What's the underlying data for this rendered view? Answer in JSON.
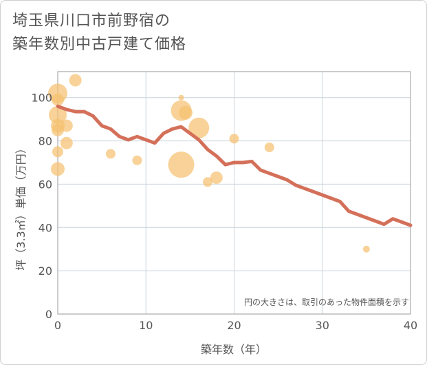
{
  "chart_data": {
    "type": "scatter",
    "title_lines": [
      "埼玉県川口市前野宿の",
      "築年数別中古戸建て価格"
    ],
    "xlabel": "築年数（年）",
    "ylabel": "坪（3.3㎡）単価（万円）",
    "xlim": [
      0,
      40
    ],
    "ylim": [
      0,
      112
    ],
    "xticks": [
      0,
      10,
      20,
      30,
      40
    ],
    "yticks": [
      0,
      20,
      40,
      60,
      80,
      100
    ],
    "grid": true,
    "note": "円の大きさは、取引のあった物件面積を示す",
    "bubble_color": "#f5c070",
    "line_color": "#d4705a",
    "scatter": [
      {
        "x": 0,
        "y": 102,
        "r": 14
      },
      {
        "x": 0,
        "y": 99,
        "r": 9
      },
      {
        "x": 0,
        "y": 92,
        "r": 13
      },
      {
        "x": 0,
        "y": 87,
        "r": 10
      },
      {
        "x": 0,
        "y": 85,
        "r": 9
      },
      {
        "x": 0,
        "y": 75,
        "r": 8
      },
      {
        "x": 0,
        "y": 67,
        "r": 10
      },
      {
        "x": 1,
        "y": 87,
        "r": 9
      },
      {
        "x": 1,
        "y": 79,
        "r": 9
      },
      {
        "x": 2,
        "y": 108,
        "r": 9
      },
      {
        "x": 6,
        "y": 74,
        "r": 7
      },
      {
        "x": 9,
        "y": 71,
        "r": 7
      },
      {
        "x": 14,
        "y": 100,
        "r": 4
      },
      {
        "x": 14,
        "y": 94,
        "r": 15
      },
      {
        "x": 14.5,
        "y": 93,
        "r": 10
      },
      {
        "x": 14,
        "y": 69,
        "r": 19
      },
      {
        "x": 16,
        "y": 86,
        "r": 15
      },
      {
        "x": 17,
        "y": 61,
        "r": 7
      },
      {
        "x": 18,
        "y": 63,
        "r": 9
      },
      {
        "x": 20,
        "y": 81,
        "r": 7
      },
      {
        "x": 24,
        "y": 77,
        "r": 7
      },
      {
        "x": 35,
        "y": 30,
        "r": 5
      }
    ],
    "trend": [
      {
        "x": 0,
        "y": 96
      },
      {
        "x": 1,
        "y": 94.5
      },
      {
        "x": 2,
        "y": 93.5
      },
      {
        "x": 3,
        "y": 93.5
      },
      {
        "x": 4,
        "y": 91.5
      },
      {
        "x": 5,
        "y": 87
      },
      {
        "x": 6,
        "y": 85.5
      },
      {
        "x": 7,
        "y": 82
      },
      {
        "x": 8,
        "y": 80.5
      },
      {
        "x": 9,
        "y": 82
      },
      {
        "x": 10,
        "y": 80.5
      },
      {
        "x": 11,
        "y": 79
      },
      {
        "x": 12,
        "y": 83.5
      },
      {
        "x": 13,
        "y": 85.5
      },
      {
        "x": 14,
        "y": 86.5
      },
      {
        "x": 15,
        "y": 83.5
      },
      {
        "x": 16,
        "y": 80.5
      },
      {
        "x": 17,
        "y": 76
      },
      {
        "x": 18,
        "y": 73
      },
      {
        "x": 19,
        "y": 69
      },
      {
        "x": 20,
        "y": 70
      },
      {
        "x": 21,
        "y": 70
      },
      {
        "x": 22,
        "y": 70.5
      },
      {
        "x": 23,
        "y": 66.5
      },
      {
        "x": 24,
        "y": 65
      },
      {
        "x": 25,
        "y": 63.5
      },
      {
        "x": 26,
        "y": 62
      },
      {
        "x": 27,
        "y": 59.5
      },
      {
        "x": 28,
        "y": 58
      },
      {
        "x": 29,
        "y": 56.5
      },
      {
        "x": 30,
        "y": 55
      },
      {
        "x": 31,
        "y": 53.5
      },
      {
        "x": 32,
        "y": 52
      },
      {
        "x": 33,
        "y": 47.5
      },
      {
        "x": 34,
        "y": 46
      },
      {
        "x": 35,
        "y": 44.5
      },
      {
        "x": 36,
        "y": 43
      },
      {
        "x": 37,
        "y": 41.5
      },
      {
        "x": 38,
        "y": 44
      },
      {
        "x": 39,
        "y": 42.5
      },
      {
        "x": 40,
        "y": 41
      }
    ]
  }
}
